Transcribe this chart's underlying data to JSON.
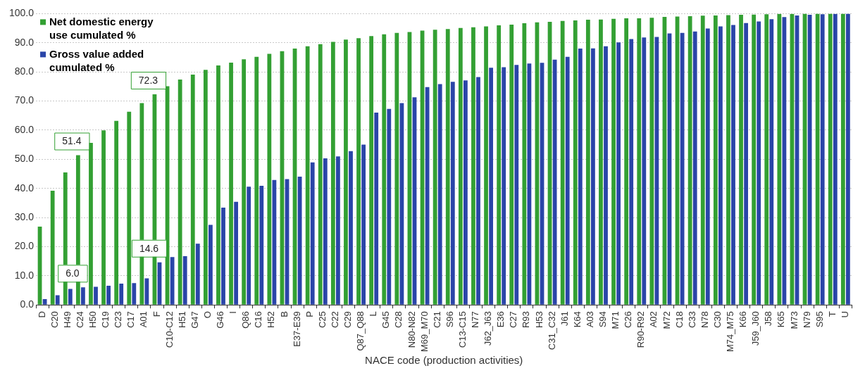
{
  "chart_data": {
    "type": "bar",
    "xlabel": "NACE code (production activities)",
    "categories": [
      "D",
      "C20",
      "H49",
      "C24",
      "H50",
      "C19",
      "C23",
      "C17",
      "A01",
      "F",
      "C10-C12",
      "H51",
      "G47",
      "O",
      "G46",
      "I",
      "Q86",
      "C16",
      "H52",
      "B",
      "E37-E39",
      "P",
      "C25",
      "C22",
      "C29",
      "Q87_Q88",
      "L",
      "G45",
      "C28",
      "N80-N82",
      "M69_M70",
      "C21",
      "S96",
      "C13-C15",
      "N77",
      "J62_J63",
      "E36",
      "C27",
      "R93",
      "H53",
      "C31_C32",
      "J61",
      "K64",
      "A03",
      "S94",
      "M71",
      "C26",
      "R90-R92",
      "A02",
      "M72",
      "C18",
      "C33",
      "N78",
      "C30",
      "M74_M75",
      "K66",
      "J59_J60",
      "J58",
      "K65",
      "M73",
      "N79",
      "S95",
      "T",
      "U"
    ],
    "series": [
      {
        "name": "Net domestic energy use cumulated %",
        "color": "#33a033",
        "values": [
          26.9,
          39.2,
          45.5,
          51.4,
          55.6,
          59.9,
          63.2,
          66.3,
          69.3,
          72.3,
          75.1,
          77.4,
          79.1,
          80.7,
          82.2,
          83.2,
          84.3,
          85.2,
          86.2,
          87.1,
          88.0,
          88.8,
          89.5,
          90.3,
          91.1,
          91.6,
          92.3,
          92.9,
          93.4,
          93.7,
          94.2,
          94.5,
          94.7,
          95.1,
          95.3,
          95.6,
          96.0,
          96.2,
          96.7,
          97.0,
          97.2,
          97.5,
          97.7,
          97.9,
          98.0,
          98.2,
          98.4,
          98.4,
          98.6,
          98.9,
          99.0,
          99.1,
          99.3,
          99.4,
          99.5,
          99.6,
          99.7,
          99.8,
          99.9,
          99.9,
          100,
          100,
          100,
          100
        ],
        "value_labels": [
          null,
          null,
          null,
          "51.4",
          null,
          null,
          null,
          null,
          null,
          "72.3",
          null,
          null,
          null,
          null,
          null,
          null,
          null,
          null,
          null,
          null,
          null,
          null,
          null,
          null,
          null,
          null,
          null,
          null,
          null,
          null,
          null,
          null,
          null,
          null,
          null,
          null,
          null,
          null,
          null,
          null,
          null,
          null,
          null,
          null,
          null,
          null,
          null,
          null,
          null,
          null,
          null,
          null,
          null,
          null,
          null,
          null,
          null,
          null,
          null,
          null,
          null,
          null,
          null,
          null
        ]
      },
      {
        "name": "Gross value added cumulated %",
        "color": "#2a45a8",
        "values": [
          2.0,
          3.3,
          5.5,
          6.0,
          6.2,
          6.6,
          7.3,
          7.5,
          9.1,
          14.6,
          16.4,
          16.7,
          21.0,
          27.5,
          33.4,
          35.4,
          40.6,
          40.9,
          42.9,
          43.2,
          44.0,
          48.9,
          50.3,
          51.0,
          52.8,
          55.0,
          66.0,
          67.3,
          69.3,
          71.3,
          74.8,
          75.8,
          76.6,
          77.1,
          78.2,
          81.4,
          81.6,
          82.4,
          82.9,
          83.1,
          84.2,
          85.2,
          88.0,
          88.1,
          88.8,
          90.1,
          91.3,
          91.8,
          92.0,
          93.2,
          93.4,
          93.9,
          94.9,
          95.6,
          96.1,
          96.8,
          97.3,
          98.1,
          98.8,
          99.4,
          99.6,
          99.8,
          99.9,
          100
        ],
        "value_labels": [
          null,
          null,
          null,
          "6.0",
          null,
          null,
          null,
          null,
          null,
          "14.6",
          null,
          null,
          null,
          null,
          null,
          null,
          null,
          null,
          null,
          null,
          null,
          null,
          null,
          null,
          null,
          null,
          null,
          null,
          null,
          null,
          null,
          null,
          null,
          null,
          null,
          null,
          null,
          null,
          null,
          null,
          null,
          null,
          null,
          null,
          null,
          null,
          null,
          null,
          null,
          null,
          null,
          null,
          null,
          null,
          null,
          null,
          null,
          null,
          null,
          null,
          null,
          null,
          null,
          null
        ]
      }
    ],
    "ylim": [
      0,
      100
    ],
    "yticks": [
      {
        "value": 0,
        "label": "0.0"
      },
      {
        "value": 10,
        "label": "10.0"
      },
      {
        "value": 20,
        "label": "20.0"
      },
      {
        "value": 30,
        "label": "30.0"
      },
      {
        "value": 40,
        "label": "40.0"
      },
      {
        "value": 50,
        "label": "50.0"
      },
      {
        "value": 60,
        "label": "60.0"
      },
      {
        "value": 70,
        "label": "70.0"
      },
      {
        "value": 80,
        "label": "80.0"
      },
      {
        "value": 90,
        "label": "90.0"
      },
      {
        "value": 100,
        "label": "100.0"
      }
    ],
    "grid": "y",
    "legend": "top left"
  }
}
